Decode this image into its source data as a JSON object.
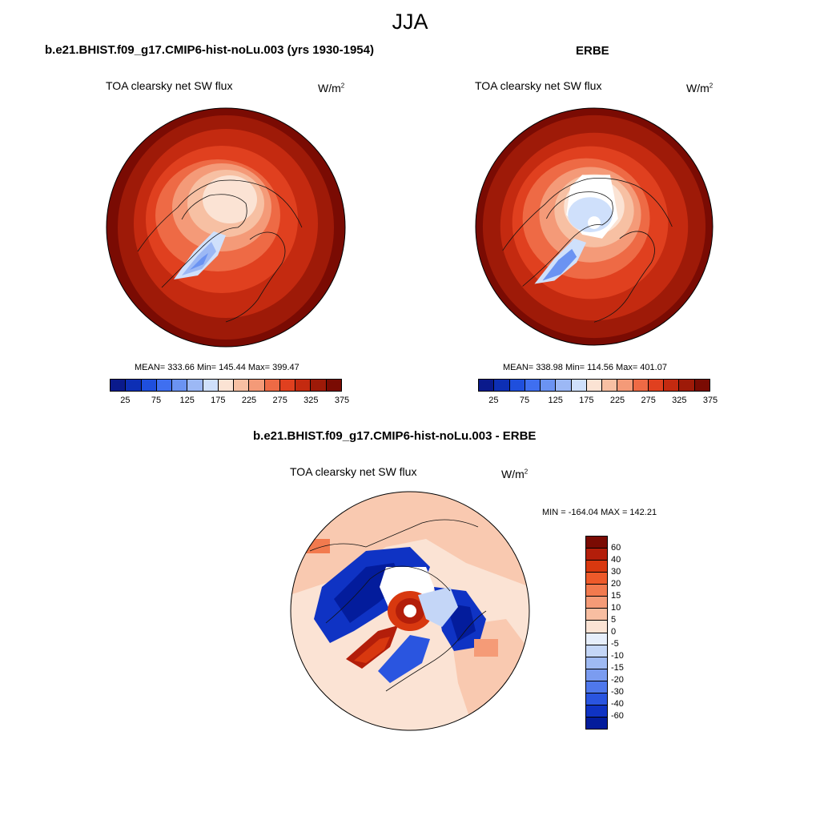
{
  "title": "JJA",
  "panels": [
    {
      "title": "b.e21.BHIST.f09_g17.CMIP6-hist-noLu.003 (yrs 1930-1954)",
      "variable": "TOA clearsky net SW flux",
      "units": "W/m",
      "units_sup": "2",
      "stats": "MEAN= 333.66  Min= 145.44  Max= 399.47"
    },
    {
      "title": "ERBE",
      "variable": "TOA clearsky net SW flux",
      "units": "W/m",
      "units_sup": "2",
      "stats": "MEAN= 338.98  Min= 114.56  Max= 401.07"
    },
    {
      "title": "b.e21.BHIST.f09_g17.CMIP6-hist-noLu.003 - ERBE",
      "variable": "TOA clearsky net SW flux",
      "units": "W/m",
      "units_sup": "2",
      "stats": "MIN = -164.04 MAX = 142.21"
    }
  ],
  "colorbar_abs": {
    "colors": [
      "#0a1a8c",
      "#0d2fb5",
      "#1f4fdd",
      "#3f6ff0",
      "#6b93f2",
      "#9cb8f5",
      "#cfe0fb",
      "#fbe3d4",
      "#f7c0a3",
      "#f49a78",
      "#ee6a45",
      "#e0401f",
      "#c42a10",
      "#9e1a08",
      "#7a0b03"
    ],
    "tick_labels": [
      "25",
      "75",
      "125",
      "175",
      "225",
      "275",
      "325",
      "375"
    ]
  },
  "colorbar_diff": {
    "colors_top_to_bottom": [
      "#7a0b03",
      "#b31e0a",
      "#d8380f",
      "#ee5a2a",
      "#f27a4e",
      "#f59b77",
      "#f8bea1",
      "#fbe3d4",
      "#e6eefb",
      "#c4d6f7",
      "#9fbaf3",
      "#7b9cf0",
      "#4f78ec",
      "#2a55e0",
      "#0f33c4",
      "#031c9c"
    ],
    "tick_labels": [
      "60",
      "40",
      "30",
      "20",
      "15",
      "10",
      "5",
      "0",
      "-5",
      "-10",
      "-15",
      "-20",
      "-30",
      "-40",
      "-60"
    ]
  }
}
